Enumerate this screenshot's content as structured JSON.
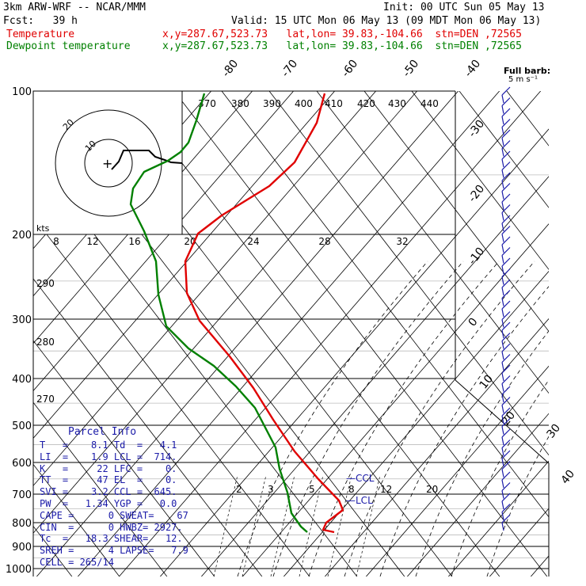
{
  "header": {
    "model": "3km ARW-WRF -- NCAR/MMM",
    "init": "Init: 00 UTC Sun 05 May 13",
    "fcst": "Fcst:   39 h",
    "valid": "Valid: 15 UTC Mon 06 May 13 (09 MDT Mon 06 May 13)",
    "series_lines": [
      {
        "name": "Temperature",
        "info": "x,y=287.67,523.73   lat,lon= 39.83,-104.66  stn=DEN ,72565",
        "color": "#e00000"
      },
      {
        "name": "Dewpoint temperature",
        "info": "x,y=287.67,523.73   lat,lon= 39.83,-104.66  stn=DEN ,72565",
        "color": "#008000"
      }
    ]
  },
  "parcel": {
    "title": "Parcel Info",
    "rows": [
      [
        "T   =",
        "8.1",
        "Td  =",
        "4.1"
      ],
      [
        "LI  =",
        "1.9",
        "LCL =",
        "714."
      ],
      [
        "K   =",
        "22",
        "LFC =",
        "0."
      ],
      [
        "TT  =",
        "47",
        "EL  =",
        "0."
      ],
      [
        "SVI =",
        "3.2",
        "CCL =",
        "645."
      ],
      [
        "PW  =",
        "1.34",
        "YGP =",
        "0.0"
      ],
      [
        "CAPE =",
        "0",
        "SWEAT=",
        "67"
      ],
      [
        "CIN  =",
        "0",
        "HWBZ=",
        "2927."
      ],
      [
        "Tc  =",
        "18.3",
        "SHEAR=",
        "12."
      ],
      [
        "SREH =",
        "4",
        "LAPSE=",
        "7.9"
      ],
      [
        "CELL = 265/14",
        "",
        "",
        ""
      ]
    ]
  },
  "chart_data": {
    "type": "line",
    "title": "",
    "y_axis": {
      "label": "",
      "ticks": [
        100,
        200,
        300,
        400,
        500,
        600,
        700,
        800,
        900,
        1000
      ]
    },
    "isotherm_labels": [
      "-80",
      "-70",
      "-60",
      "-50",
      "-40",
      "-30",
      "-20",
      "-10",
      "0",
      "10",
      "20",
      "30",
      "40"
    ],
    "theta_labels": [
      "370",
      "380",
      "390",
      "400",
      "410",
      "420",
      "430",
      "440",
      "290",
      "280",
      "270"
    ],
    "mixing_ratio_labels": [
      "2",
      "3",
      "5",
      "8",
      "12",
      "20"
    ],
    "ccl_label": "CCL",
    "lcl_label": "LCL",
    "wind_scale": {
      "labels": [
        "8",
        "12",
        "16",
        "20",
        "24",
        "28",
        "32"
      ],
      "unit": "kts"
    },
    "hodograph_ring_labels": [
      "10",
      "20"
    ],
    "barb_legend": {
      "title": "Full barb:",
      "unit": "5 m s⁻¹"
    },
    "series": [
      {
        "name": "Temperature",
        "color": "#e00000",
        "points": [
          [
            410,
            118
          ],
          [
            400,
            155
          ],
          [
            372,
            205
          ],
          [
            340,
            235
          ],
          [
            280,
            272
          ],
          [
            250,
            295
          ],
          [
            234,
            330
          ],
          [
            236,
            370
          ],
          [
            252,
            405
          ],
          [
            290,
            450
          ],
          [
            320,
            490
          ],
          [
            345,
            530
          ],
          [
            372,
            570
          ],
          [
            402,
            605
          ],
          [
            428,
            632
          ],
          [
            433,
            644
          ],
          [
            412,
            660
          ],
          [
            408,
            669
          ],
          [
            422,
            672
          ]
        ]
      },
      {
        "name": "Dewpoint temperature",
        "color": "#008000",
        "points": [
          [
            258,
            118
          ],
          [
            248,
            152
          ],
          [
            238,
            180
          ],
          [
            228,
            192
          ],
          [
            212,
            203
          ],
          [
            182,
            217
          ],
          [
            168,
            238
          ],
          [
            165,
            258
          ],
          [
            182,
            292
          ],
          [
            197,
            330
          ],
          [
            200,
            372
          ],
          [
            210,
            412
          ],
          [
            238,
            440
          ],
          [
            270,
            462
          ],
          [
            298,
            488
          ],
          [
            322,
            515
          ],
          [
            335,
            540
          ],
          [
            348,
            565
          ],
          [
            353,
            592
          ],
          [
            363,
            622
          ],
          [
            368,
            648
          ],
          [
            380,
            665
          ],
          [
            388,
            672
          ]
        ]
      }
    ]
  }
}
